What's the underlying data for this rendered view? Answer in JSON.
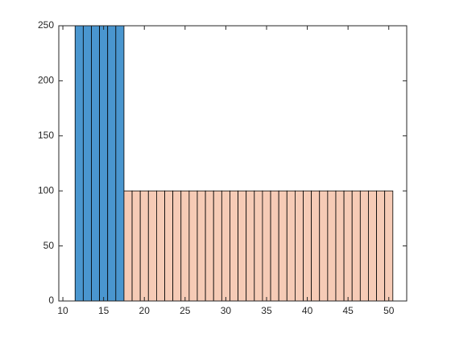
{
  "chart_data": {
    "type": "histogram",
    "series": [
      {
        "color": "#4a96cf",
        "bins": [
          11.5,
          12.5,
          13.5,
          14.5,
          15.5,
          16.5,
          17.5
        ],
        "values": [
          250,
          250,
          250,
          250,
          250,
          250
        ]
      },
      {
        "color": "#f6cbb6",
        "bins": [
          17.5,
          18.5,
          19.5,
          20.5,
          21.5,
          22.5,
          23.5,
          24.5,
          25.5,
          26.5,
          27.5,
          28.5,
          29.5,
          30.5,
          31.5,
          32.5,
          33.5,
          34.5,
          35.5,
          36.5,
          37.5,
          38.5,
          39.5,
          40.5,
          41.5,
          42.5,
          43.5,
          44.5,
          45.5,
          46.5,
          47.5,
          48.5,
          49.5,
          50.5
        ],
        "values": [
          100,
          100,
          100,
          100,
          100,
          100,
          100,
          100,
          100,
          100,
          100,
          100,
          100,
          100,
          100,
          100,
          100,
          100,
          100,
          100,
          100,
          100,
          100,
          100,
          100,
          100,
          100,
          100,
          100,
          100,
          100,
          100,
          100
        ]
      }
    ],
    "xlim": [
      9.5,
      52.2
    ],
    "xticks": [
      10,
      15,
      20,
      25,
      30,
      35,
      40,
      45,
      50
    ],
    "ylim": [
      0,
      250
    ],
    "yticks": [
      0,
      50,
      100,
      150,
      200,
      250
    ]
  }
}
